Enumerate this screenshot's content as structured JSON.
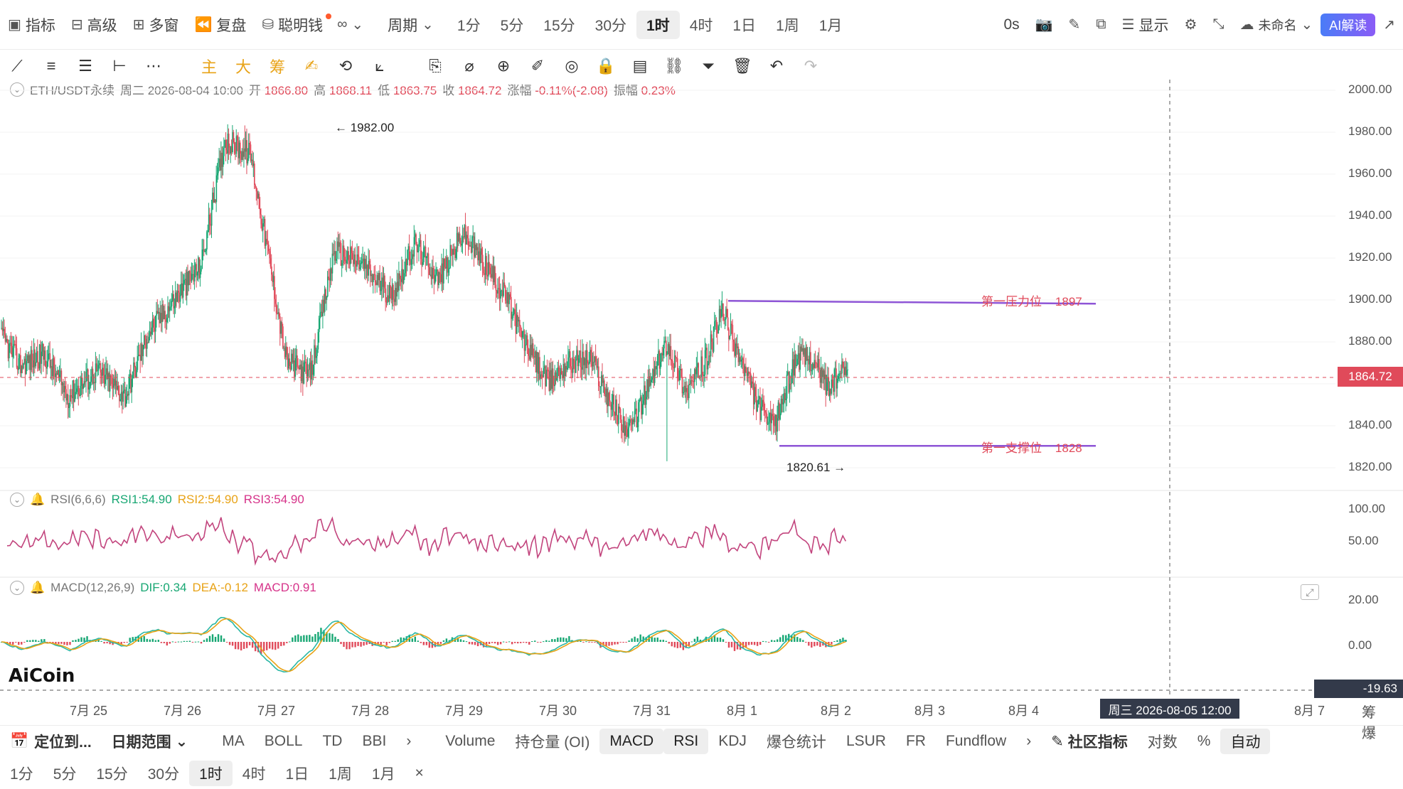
{
  "topbar": {
    "indicators": "指标",
    "advanced": "高级",
    "multi_window": "多窗",
    "replay": "复盘",
    "smart_money": "聪明钱",
    "period_label": "周期",
    "periods": [
      "1分",
      "5分",
      "15分",
      "30分",
      "1时",
      "4时",
      "1日",
      "1周",
      "1月"
    ],
    "active_period": "1时",
    "countdown": "0s",
    "display": "显示",
    "layout_name": "未命名",
    "ai_button": "AI解读"
  },
  "info": {
    "symbol": "ETH/USDT永续",
    "datetime": "周二 2026-08-04 10:00",
    "open_label": "开",
    "open": "1866.80",
    "high_label": "高",
    "high": "1868.11",
    "low_label": "低",
    "low": "1863.75",
    "close_label": "收",
    "close": "1864.72",
    "change_label": "涨幅",
    "change": "-0.11%(-2.08)",
    "amp_label": "振幅",
    "amp": "0.23%"
  },
  "rsi_info": {
    "name": "RSI(6,6,6)",
    "rsi1": "RSI1:54.90",
    "rsi2": "RSI2:54.90",
    "rsi3": "RSI3:54.90"
  },
  "macd_info": {
    "name": "MACD(12,26,9)",
    "dif": "DIF:0.34",
    "dea": "DEA:-0.12",
    "macd": "MACD:0.91"
  },
  "annotations": {
    "high_marker": "← 1982.00",
    "low_marker": "1820.61 →",
    "resistance": "第一压力位",
    "resistance_val": "1897",
    "support": "第一支撑位",
    "support_val": "1828"
  },
  "price_axis": [
    "2000.00",
    "1980.00",
    "1960.00",
    "1940.00",
    "1920.00",
    "1900.00",
    "1880.00",
    "1860.00",
    "1840.00",
    "1820.00"
  ],
  "current_price": "1864.72",
  "rsi_axis": [
    "100.00",
    "50.00"
  ],
  "macd_axis": [
    "20.00",
    "0.00"
  ],
  "macd_low": "-19.63",
  "date_axis": [
    "7月 25",
    "7月 26",
    "7月 27",
    "7月 28",
    "7月 29",
    "7月 30",
    "7月 31",
    "8月 1",
    "8月 2",
    "8月 3",
    "8月 4",
    "8月 7"
  ],
  "crosshair_date": "周三 2026-08-05 12:00",
  "axis_right": "筹 爆",
  "logo": "AiCoin",
  "bottom1": {
    "locate": "定位到...",
    "date_range": "日期范围",
    "main_indicators": [
      "MA",
      "BOLL",
      "TD",
      "BBI"
    ],
    "sub_indicators": [
      "Volume",
      "持仓量 (OI)",
      "MACD",
      "RSI",
      "KDJ",
      "爆仓统计",
      "LSUR",
      "FR",
      "Fundflow"
    ],
    "active_sub": [
      "MACD",
      "RSI"
    ],
    "community": "社区指标",
    "log": "对数",
    "percent": "%",
    "auto": "自动"
  },
  "bottom2": {
    "periods": [
      "1分",
      "5分",
      "15分",
      "30分",
      "1时",
      "4时",
      "1日",
      "1周",
      "1月"
    ],
    "active": "1时",
    "close": "×"
  },
  "colors": {
    "up": "#18a773",
    "down": "#e04a5a",
    "level_line": "#8e55d6",
    "rsi": "#c2447d",
    "dif": "#2ab7a5",
    "dea": "#e8a317"
  },
  "chart_data": {
    "type": "candlestick",
    "timeframe": "1h",
    "price_range": [
      1810,
      2004
    ],
    "last_price": 1864.72,
    "high": 1982.0,
    "low": 1820.61,
    "resistance": 1897,
    "support": 1828,
    "anchors": [
      [
        0,
        1880
      ],
      [
        20,
        1867
      ],
      [
        45,
        1872
      ],
      [
        70,
        1852
      ],
      [
        100,
        1864
      ],
      [
        130,
        1852
      ],
      [
        155,
        1883
      ],
      [
        180,
        1897
      ],
      [
        210,
        1915
      ],
      [
        235,
        1975
      ],
      [
        262,
        1968
      ],
      [
        285,
        1908
      ],
      [
        300,
        1868
      ],
      [
        325,
        1862
      ],
      [
        350,
        1922
      ],
      [
        380,
        1915
      ],
      [
        410,
        1900
      ],
      [
        435,
        1925
      ],
      [
        460,
        1908
      ],
      [
        485,
        1930
      ],
      [
        510,
        1914
      ],
      [
        530,
        1900
      ],
      [
        550,
        1878
      ],
      [
        575,
        1858
      ],
      [
        595,
        1868
      ],
      [
        620,
        1870
      ],
      [
        640,
        1850
      ],
      [
        660,
        1834
      ],
      [
        680,
        1856
      ],
      [
        700,
        1878
      ],
      [
        720,
        1854
      ],
      [
        740,
        1868
      ],
      [
        758,
        1893
      ],
      [
        775,
        1872
      ],
      [
        795,
        1848
      ],
      [
        812,
        1836
      ],
      [
        835,
        1870
      ],
      [
        852,
        1870
      ],
      [
        870,
        1856
      ],
      [
        890,
        1866
      ]
    ]
  }
}
